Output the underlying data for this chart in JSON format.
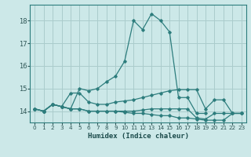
{
  "xlabel": "Humidex (Indice chaleur)",
  "bg_color": "#cce8e8",
  "grid_color": "#aacccc",
  "line_color": "#2d7d7d",
  "x_values": [
    0,
    1,
    2,
    3,
    4,
    5,
    6,
    7,
    8,
    9,
    10,
    11,
    12,
    13,
    14,
    15,
    16,
    17,
    18,
    19,
    20,
    21,
    22,
    23
  ],
  "curves": [
    [
      14.1,
      14.0,
      14.3,
      14.2,
      14.1,
      15.0,
      14.9,
      15.0,
      15.3,
      15.55,
      16.2,
      18.0,
      17.6,
      18.3,
      18.0,
      17.5,
      14.6,
      14.6,
      13.9,
      13.9,
      null,
      null,
      null,
      null
    ],
    [
      14.1,
      14.0,
      14.3,
      14.2,
      14.8,
      14.8,
      14.4,
      14.3,
      14.3,
      14.4,
      14.45,
      14.5,
      14.6,
      14.7,
      14.8,
      14.9,
      14.95,
      14.95,
      14.95,
      14.1,
      14.5,
      14.5,
      13.9,
      13.9
    ],
    [
      14.1,
      14.0,
      14.3,
      14.2,
      14.1,
      14.1,
      14.0,
      14.0,
      14.0,
      14.0,
      13.95,
      13.9,
      13.9,
      13.85,
      13.8,
      13.8,
      13.7,
      13.7,
      13.65,
      13.6,
      13.6,
      13.6,
      13.9,
      13.9
    ],
    [
      14.1,
      14.0,
      14.3,
      14.2,
      14.1,
      14.1,
      14.0,
      14.0,
      14.0,
      14.0,
      14.0,
      14.0,
      14.05,
      14.1,
      14.1,
      14.1,
      14.1,
      14.1,
      13.7,
      13.65,
      13.9,
      13.9,
      13.9,
      13.9
    ]
  ],
  "ylim": [
    13.5,
    18.7
  ],
  "xlim": [
    -0.5,
    23.5
  ],
  "yticks": [
    14,
    15,
    16,
    17,
    18
  ],
  "xticks": [
    0,
    1,
    2,
    3,
    4,
    5,
    6,
    7,
    8,
    9,
    10,
    11,
    12,
    13,
    14,
    15,
    16,
    17,
    18,
    19,
    20,
    21,
    22,
    23
  ]
}
